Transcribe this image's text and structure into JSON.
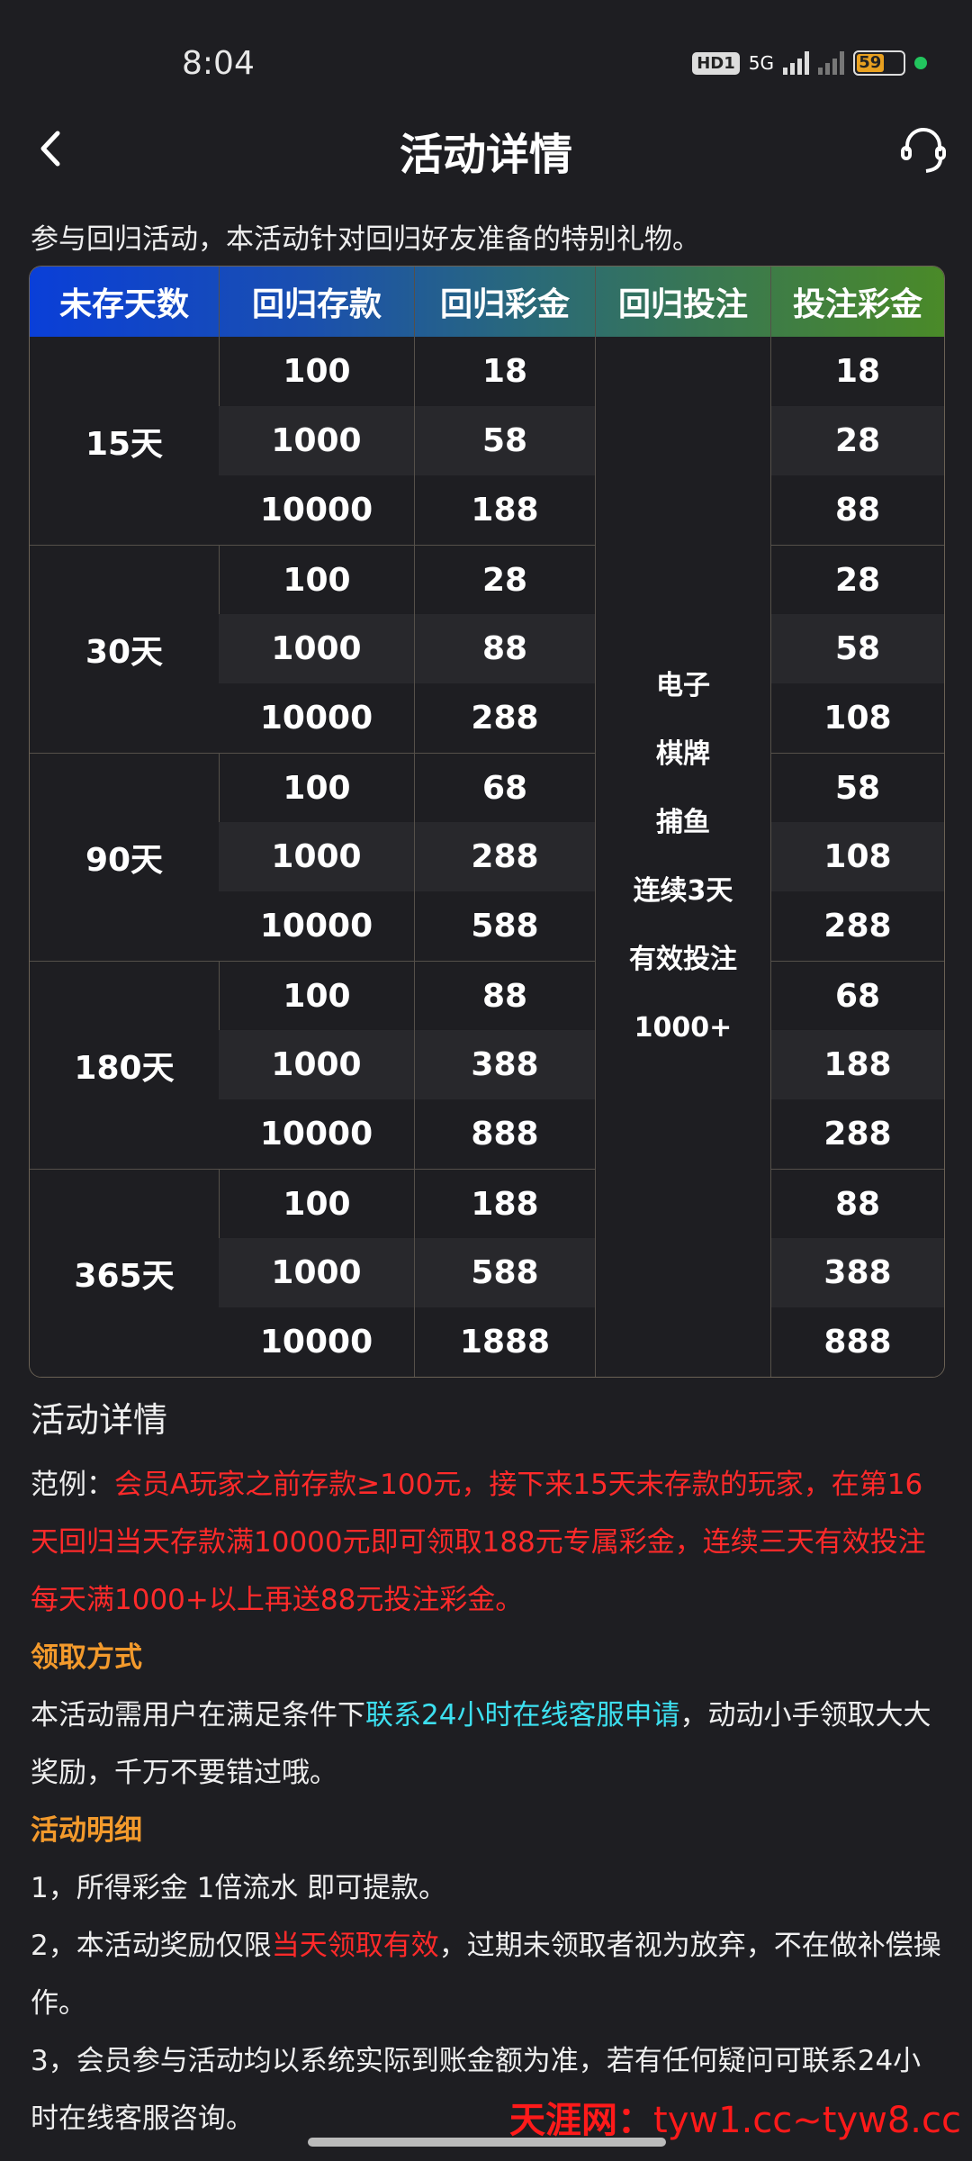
{
  "status": {
    "time": "8:04",
    "hd": "HD1",
    "net": "5G",
    "battery": "59"
  },
  "nav": {
    "title": "活动详情",
    "back_icon": "chevron-left-icon",
    "service_icon": "headset-icon"
  },
  "intro": "参与回归活动，本活动针对回归好友准备的特别礼物。",
  "table": {
    "headers": [
      "未存天数",
      "回归存款",
      "回归彩金",
      "回归投注",
      "投注彩金"
    ],
    "bet_requirement": [
      "电子",
      "棋牌",
      "捕鱼",
      "连续3天",
      "有效投注",
      "1000+"
    ],
    "groups": [
      {
        "days": "15天",
        "rows": [
          [
            "100",
            "18",
            "18"
          ],
          [
            "1000",
            "58",
            "28"
          ],
          [
            "10000",
            "188",
            "88"
          ]
        ]
      },
      {
        "days": "30天",
        "rows": [
          [
            "100",
            "28",
            "28"
          ],
          [
            "1000",
            "88",
            "58"
          ],
          [
            "10000",
            "288",
            "108"
          ]
        ]
      },
      {
        "days": "90天",
        "rows": [
          [
            "100",
            "68",
            "58"
          ],
          [
            "1000",
            "288",
            "108"
          ],
          [
            "10000",
            "588",
            "288"
          ]
        ]
      },
      {
        "days": "180天",
        "rows": [
          [
            "100",
            "88",
            "68"
          ],
          [
            "1000",
            "388",
            "188"
          ],
          [
            "10000",
            "888",
            "288"
          ]
        ]
      },
      {
        "days": "365天",
        "rows": [
          [
            "100",
            "188",
            "88"
          ],
          [
            "1000",
            "588",
            "388"
          ],
          [
            "10000",
            "1888",
            "888"
          ]
        ]
      }
    ]
  },
  "details": {
    "heading": "活动详情",
    "example_label": "范例：",
    "example_text": "会员A玩家之前存款≥100元，接下来15天未存款的玩家，在第16天回归当天存款满10000元即可领取188元专属彩金，连续三天有效投注每天满1000+以上再送88元投注彩金。",
    "claim_heading": "领取方式",
    "claim_pre": "本活动需用户在满足条件下",
    "claim_link": "联系24小时在线客服申请",
    "claim_post": "，动动小手领取大大奖励，千万不要错过哦。",
    "rules_heading": "活动明细",
    "rule1": "1，所得彩金 1倍流水 即可提款。",
    "rule2_pre": "2，本活动奖励仅限",
    "rule2_red": "当天领取有效",
    "rule2_post": "，过期未领取者视为放弃，不在做补偿操作。",
    "rule3": "3，会员参与活动均以系统实际到账金额为准，若有任何疑问可联系24小时在线客服咨询。"
  },
  "watermark": {
    "name": "天涯网：",
    "urls": "tyw1.cc~tyw8.cc"
  },
  "colors": {
    "background": "#1e1e22",
    "red": "#ff2a2a",
    "cyan": "#3de0f0",
    "orange": "#f39a2c"
  }
}
